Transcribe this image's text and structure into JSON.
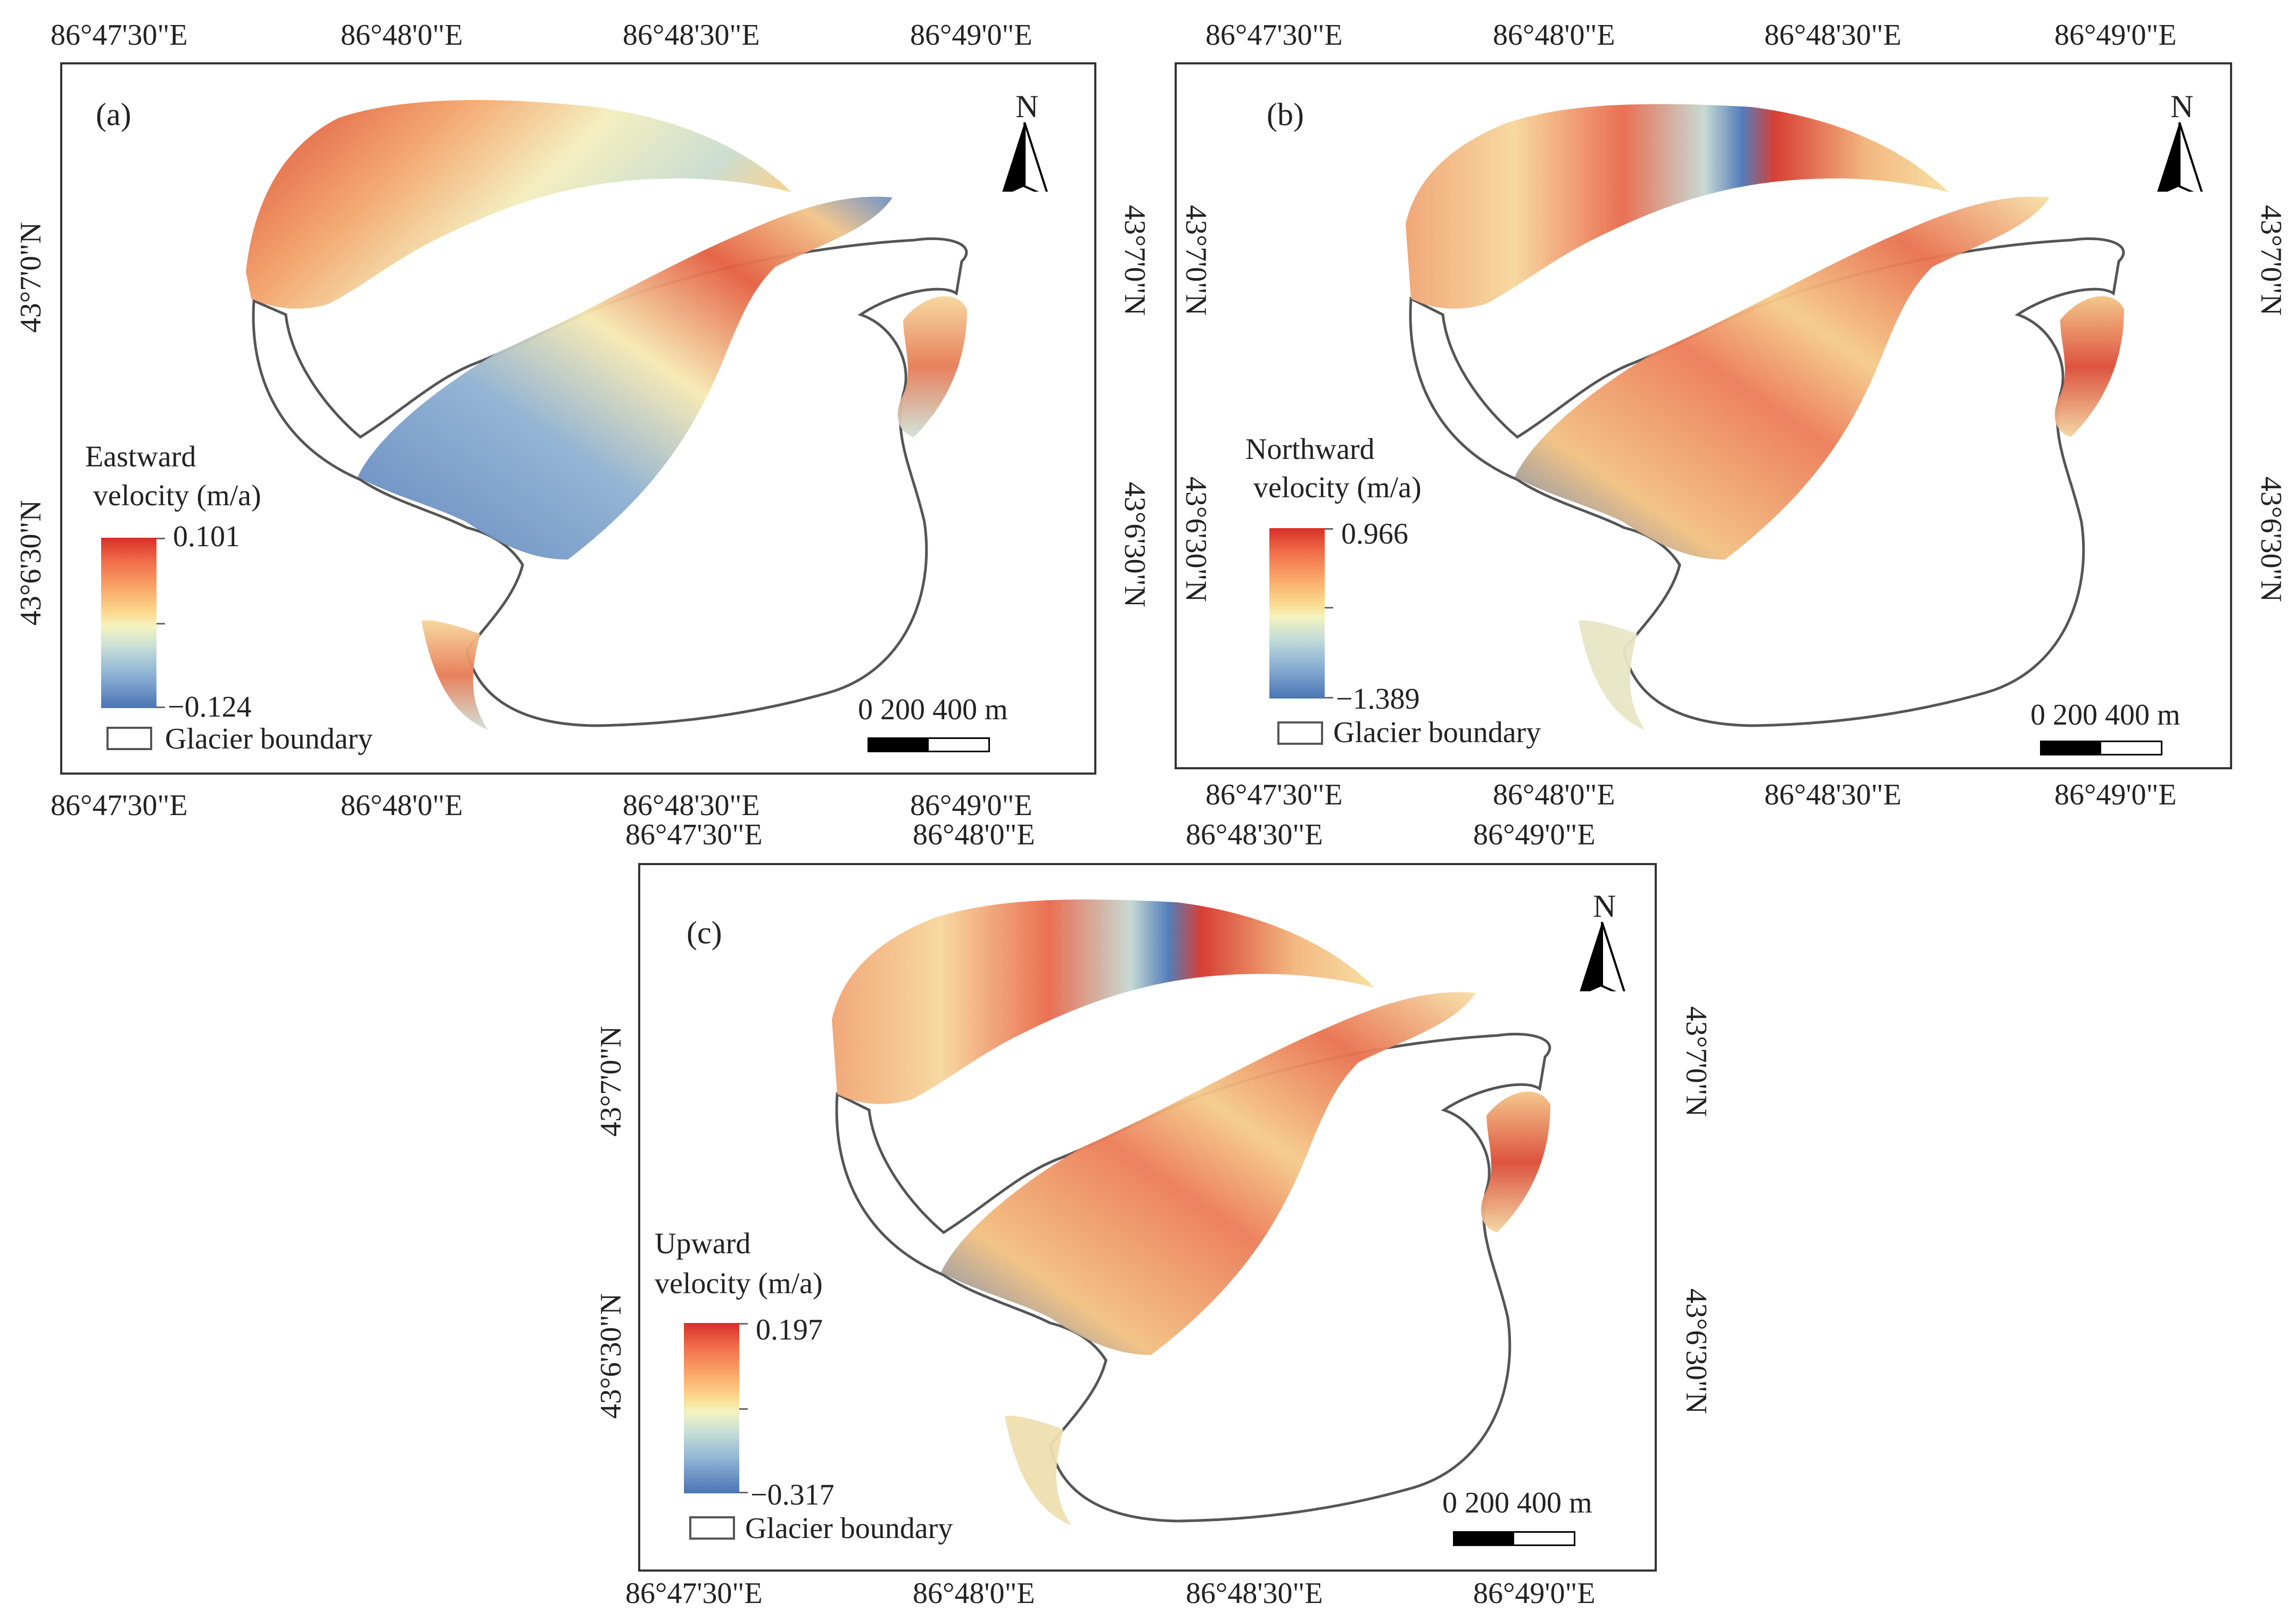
{
  "figure": {
    "boundary_legend_label": "Glacier boundary",
    "north_label": "N",
    "scale": {
      "label": "0   200 400 m"
    },
    "colors": {
      "boundary": "#555555",
      "high": "#d62f27",
      "mid": "#f5f3c0",
      "low": "#4a74b4"
    },
    "longitude_ticks": [
      "86°47'30\"E",
      "86°48'0\"E",
      "86°48'30\"E",
      "86°49'0\"E"
    ],
    "latitude_ticks": [
      "43°7'0\"N",
      "43°6'30\"N"
    ]
  },
  "panels": [
    {
      "letter": "(a)",
      "legend_title_1": "Eastward",
      "legend_title_2": "velocity (m/a)",
      "max": "0.101",
      "min": "−0.124"
    },
    {
      "letter": "(b)",
      "legend_title_1": "Northward",
      "legend_title_2": "velocity (m/a)",
      "max": "0.966",
      "min": "−1.389"
    },
    {
      "letter": "(c)",
      "legend_title_1": "Upward",
      "legend_title_2": "velocity (m/a)",
      "max": "0.197",
      "min": "−0.317"
    }
  ]
}
